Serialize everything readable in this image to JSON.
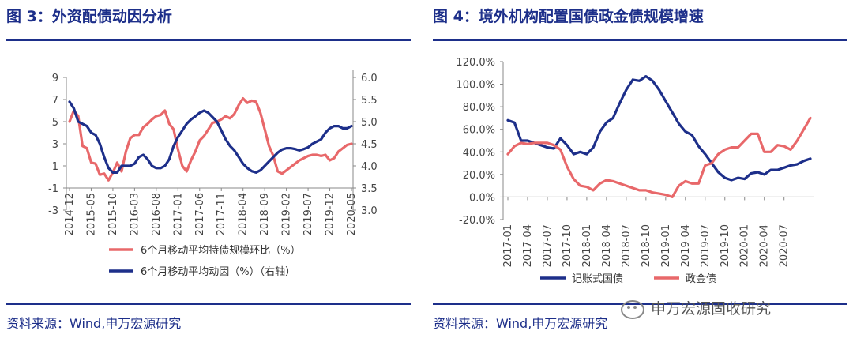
{
  "left": {
    "title": "图 3：外资配债动因分析",
    "source": "资料来源：Wind,申万宏源研究"
  },
  "right": {
    "title": "图 4：境外机构配置国债政金债规模增速",
    "source": "资料来源：Wind,申万宏源研究"
  },
  "watermark": {
    "text": "申万宏源固收研究",
    "icon": "wechat-icon"
  },
  "colors": {
    "navy": "#1d2f8a",
    "red": "#e8686a",
    "rule": "#1d2f8a"
  },
  "chart_data": [
    {
      "type": "line",
      "title": "",
      "x_tick_labels": [
        "2014-12",
        "2015-05",
        "2015-10",
        "2016-03",
        "2016-08",
        "2017-01",
        "2017-06",
        "2017-11",
        "2018-04",
        "2018-09",
        "2019-02",
        "2019-07",
        "2019-12",
        "2020-05"
      ],
      "ylim": [
        -3,
        9
      ],
      "y_ticks": [
        -3,
        -1,
        1,
        3,
        5,
        7,
        9
      ],
      "y2lim": [
        3.0,
        6.0
      ],
      "y2_ticks": [
        "3.0",
        "3.5",
        "4.0",
        "4.5",
        "5.0",
        "5.5",
        "6.0"
      ],
      "grid": false,
      "legend_position": "bottom",
      "series": [
        {
          "name": "6个月移动平均持债规模环比（%）",
          "axis": "left",
          "color": "#e8686a",
          "points": [
            [
              0,
              5.0
            ],
            [
              1,
              6.0
            ],
            [
              2,
              5.5
            ],
            [
              3,
              2.8
            ],
            [
              4,
              2.6
            ],
            [
              5,
              1.3
            ],
            [
              6,
              1.2
            ],
            [
              7,
              0.2
            ],
            [
              8,
              0.3
            ],
            [
              9,
              -0.3
            ],
            [
              10,
              0.4
            ],
            [
              11,
              1.3
            ],
            [
              12,
              0.5
            ],
            [
              13,
              2.3
            ],
            [
              14,
              3.5
            ],
            [
              15,
              3.8
            ],
            [
              16,
              3.8
            ],
            [
              17,
              4.5
            ],
            [
              18,
              4.8
            ],
            [
              19,
              5.2
            ],
            [
              20,
              5.5
            ],
            [
              21,
              5.6
            ],
            [
              22,
              6.0
            ],
            [
              23,
              4.8
            ],
            [
              24,
              4.3
            ],
            [
              25,
              2.5
            ],
            [
              26,
              1.0
            ],
            [
              27,
              0.5
            ],
            [
              28,
              1.5
            ],
            [
              29,
              2.3
            ],
            [
              30,
              3.3
            ],
            [
              31,
              3.7
            ],
            [
              32,
              4.3
            ],
            [
              33,
              4.9
            ],
            [
              34,
              5.0
            ],
            [
              35,
              5.2
            ],
            [
              36,
              5.5
            ],
            [
              37,
              5.3
            ],
            [
              38,
              5.7
            ],
            [
              39,
              6.5
            ],
            [
              40,
              7.1
            ],
            [
              41,
              6.7
            ],
            [
              42,
              6.9
            ],
            [
              43,
              6.8
            ],
            [
              44,
              5.8
            ],
            [
              45,
              4.3
            ],
            [
              46,
              2.8
            ],
            [
              47,
              1.9
            ],
            [
              48,
              0.5
            ],
            [
              49,
              0.3
            ],
            [
              50,
              0.6
            ],
            [
              51,
              0.9
            ],
            [
              52,
              1.2
            ],
            [
              53,
              1.5
            ],
            [
              54,
              1.7
            ],
            [
              55,
              1.9
            ],
            [
              56,
              2.0
            ],
            [
              57,
              2.0
            ],
            [
              58,
              1.9
            ],
            [
              59,
              2.0
            ],
            [
              60,
              1.5
            ],
            [
              61,
              1.7
            ],
            [
              62,
              2.3
            ],
            [
              63,
              2.6
            ],
            [
              64,
              2.9
            ],
            [
              65,
              3.0
            ]
          ]
        },
        {
          "name": "6个月移动平均动因（%）（右轴）",
          "axis": "right",
          "color": "#1d2f8a",
          "points": [
            [
              0,
              5.45
            ],
            [
              1,
              5.3
            ],
            [
              2,
              5.0
            ],
            [
              3,
              4.95
            ],
            [
              4,
              4.9
            ],
            [
              5,
              4.75
            ],
            [
              6,
              4.7
            ],
            [
              7,
              4.5
            ],
            [
              8,
              4.2
            ],
            [
              9,
              3.95
            ],
            [
              10,
              3.85
            ],
            [
              11,
              3.85
            ],
            [
              12,
              4.0
            ],
            [
              13,
              4.0
            ],
            [
              14,
              4.0
            ],
            [
              15,
              4.05
            ],
            [
              16,
              4.2
            ],
            [
              17,
              4.25
            ],
            [
              18,
              4.15
            ],
            [
              19,
              4.0
            ],
            [
              20,
              3.95
            ],
            [
              21,
              3.95
            ],
            [
              22,
              4.0
            ],
            [
              23,
              4.15
            ],
            [
              24,
              4.45
            ],
            [
              25,
              4.65
            ],
            [
              26,
              4.8
            ],
            [
              27,
              4.95
            ],
            [
              28,
              5.05
            ],
            [
              29,
              5.12
            ],
            [
              30,
              5.2
            ],
            [
              31,
              5.25
            ],
            [
              32,
              5.2
            ],
            [
              33,
              5.1
            ],
            [
              34,
              5.0
            ],
            [
              35,
              4.8
            ],
            [
              36,
              4.6
            ],
            [
              37,
              4.45
            ],
            [
              38,
              4.35
            ],
            [
              39,
              4.2
            ],
            [
              40,
              4.05
            ],
            [
              41,
              3.95
            ],
            [
              42,
              3.88
            ],
            [
              43,
              3.85
            ],
            [
              44,
              3.9
            ],
            [
              45,
              4.0
            ],
            [
              46,
              4.1
            ],
            [
              47,
              4.2
            ],
            [
              48,
              4.3
            ],
            [
              49,
              4.37
            ],
            [
              50,
              4.4
            ],
            [
              51,
              4.4
            ],
            [
              52,
              4.38
            ],
            [
              53,
              4.35
            ],
            [
              54,
              4.38
            ],
            [
              55,
              4.42
            ],
            [
              56,
              4.5
            ],
            [
              57,
              4.55
            ],
            [
              58,
              4.6
            ],
            [
              59,
              4.75
            ],
            [
              60,
              4.85
            ],
            [
              61,
              4.9
            ],
            [
              62,
              4.9
            ],
            [
              63,
              4.85
            ],
            [
              64,
              4.85
            ],
            [
              65,
              4.9
            ]
          ]
        }
      ]
    },
    {
      "type": "line",
      "title": "",
      "x_tick_labels": [
        "2017-01",
        "2017-04",
        "2017-07",
        "2017-10",
        "2018-01",
        "2018-04",
        "2018-07",
        "2018-10",
        "2019-01",
        "2019-04",
        "2019-07",
        "2019-10",
        "2020-01",
        "2020-04",
        "2020-07"
      ],
      "ylim": [
        -20,
        120
      ],
      "y_ticks": [
        "-20.0%",
        "0.0%",
        "20.0%",
        "40.0%",
        "60.0%",
        "80.0%",
        "100.0%",
        "120.0%"
      ],
      "grid": false,
      "legend_position": "bottom",
      "series": [
        {
          "name": "记账式国债",
          "color": "#1d2f8a",
          "points": [
            [
              0,
              68
            ],
            [
              1,
              66
            ],
            [
              2,
              50
            ],
            [
              3,
              50
            ],
            [
              4,
              48
            ],
            [
              5,
              46
            ],
            [
              6,
              44
            ],
            [
              7,
              43
            ],
            [
              8,
              52
            ],
            [
              9,
              46
            ],
            [
              10,
              38
            ],
            [
              11,
              40
            ],
            [
              12,
              38
            ],
            [
              13,
              44
            ],
            [
              14,
              58
            ],
            [
              15,
              66
            ],
            [
              16,
              70
            ],
            [
              17,
              83
            ],
            [
              18,
              95
            ],
            [
              19,
              104
            ],
            [
              20,
              103
            ],
            [
              21,
              107
            ],
            [
              22,
              103
            ],
            [
              23,
              95
            ],
            [
              24,
              85
            ],
            [
              25,
              75
            ],
            [
              26,
              65
            ],
            [
              27,
              58
            ],
            [
              28,
              55
            ],
            [
              29,
              45
            ],
            [
              30,
              38
            ],
            [
              31,
              30
            ],
            [
              32,
              22
            ],
            [
              33,
              17
            ],
            [
              34,
              15
            ],
            [
              35,
              17
            ],
            [
              36,
              16
            ],
            [
              37,
              21
            ],
            [
              38,
              22
            ],
            [
              39,
              20
            ],
            [
              40,
              24
            ],
            [
              41,
              24
            ],
            [
              42,
              26
            ],
            [
              43,
              28
            ],
            [
              44,
              29
            ],
            [
              45,
              32
            ],
            [
              46,
              34
            ]
          ]
        },
        {
          "name": "政金债",
          "color": "#e8686a",
          "points": [
            [
              0,
              38
            ],
            [
              1,
              45
            ],
            [
              2,
              48
            ],
            [
              3,
              47
            ],
            [
              4,
              48
            ],
            [
              5,
              48
            ],
            [
              6,
              48
            ],
            [
              7,
              46
            ],
            [
              8,
              42
            ],
            [
              9,
              27
            ],
            [
              10,
              16
            ],
            [
              11,
              10
            ],
            [
              12,
              9
            ],
            [
              13,
              6
            ],
            [
              14,
              12
            ],
            [
              15,
              15
            ],
            [
              16,
              14
            ],
            [
              17,
              12
            ],
            [
              18,
              10
            ],
            [
              19,
              8
            ],
            [
              20,
              6
            ],
            [
              21,
              6
            ],
            [
              22,
              4
            ],
            [
              23,
              3
            ],
            [
              24,
              2
            ],
            [
              25,
              0
            ],
            [
              26,
              10
            ],
            [
              27,
              14
            ],
            [
              28,
              12
            ],
            [
              29,
              12
            ],
            [
              30,
              28
            ],
            [
              31,
              30
            ],
            [
              32,
              38
            ],
            [
              33,
              42
            ],
            [
              34,
              44
            ],
            [
              35,
              44
            ],
            [
              36,
              50
            ],
            [
              37,
              56
            ],
            [
              38,
              56
            ],
            [
              39,
              40
            ],
            [
              40,
              40
            ],
            [
              41,
              46
            ],
            [
              42,
              45
            ],
            [
              43,
              42
            ],
            [
              44,
              50
            ],
            [
              45,
              60
            ],
            [
              46,
              70
            ]
          ]
        }
      ]
    }
  ]
}
